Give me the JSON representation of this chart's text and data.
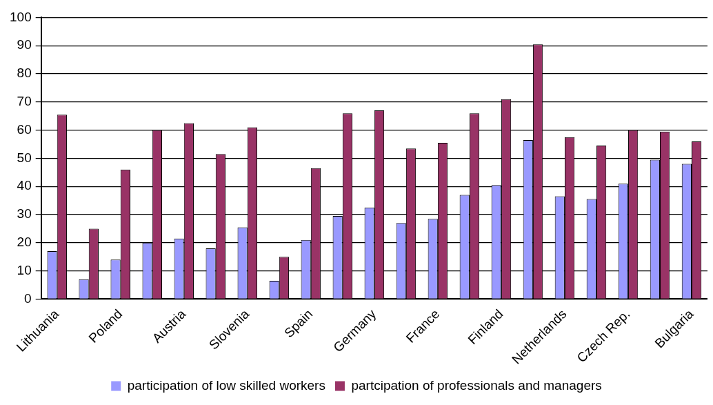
{
  "chart_data": {
    "type": "bar",
    "categories": [
      "Lithuania",
      null,
      "Poland",
      null,
      "Austria",
      null,
      "Slovenia",
      null,
      "Spain",
      null,
      "Germany",
      null,
      "France",
      null,
      "Finland",
      null,
      "Netherlands",
      null,
      "Czech Rep.",
      null,
      "Bulgaria"
    ],
    "series": [
      {
        "name": "participation of low skilled workers",
        "color": "#9999ff",
        "values": [
          17,
          7,
          14,
          20,
          21.5,
          18,
          25.5,
          6.5,
          21,
          29.5,
          32.5,
          27,
          28.5,
          37,
          40.5,
          56.5,
          36.5,
          35.5,
          41,
          49.5,
          48
        ]
      },
      {
        "name": "partcipation of professionals and managers",
        "color": "#993366",
        "values": [
          65.5,
          25,
          46,
          60,
          62.5,
          51.5,
          61,
          15,
          46.5,
          66,
          67,
          53.5,
          55.5,
          66,
          71,
          90.5,
          57.5,
          54.5,
          60,
          59.5,
          56
        ]
      }
    ],
    "ylim": [
      0,
      100
    ],
    "yticks": [
      0,
      10,
      20,
      30,
      40,
      50,
      60,
      70,
      80,
      90,
      100
    ],
    "grid": "y",
    "legend": "bottom"
  }
}
